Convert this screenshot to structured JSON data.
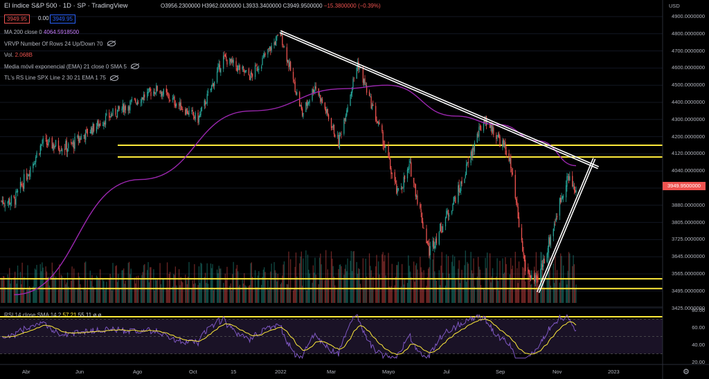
{
  "header": {
    "title": "El índice S&P 500 · 1D · SP · TradingView",
    "ohlc": "O3956.2300000 H3962.0000000 L3933.3400000 C3949.9500000",
    "change": "−15.3800000 (−0.39%)",
    "price_bid": "3949.95",
    "spread": "0.00",
    "price_ask": "3949.95"
  },
  "indicators": [
    {
      "label": "MA 200 close 0",
      "value": "4064.5918500",
      "value_color": "purple",
      "eye": false
    },
    {
      "label": "VRVP Number Of Rows 24 Up/Down 70",
      "value": "",
      "value_color": "white",
      "eye": true
    },
    {
      "label": "Vol.",
      "value": "2.068B",
      "value_color": "red",
      "eye": false
    },
    {
      "label": "Media móvil exponencial (EMA) 21 close 0 SMA 5",
      "value": "",
      "value_color": "white",
      "eye": true
    },
    {
      "label": "TL's RS Line SPX Line 2 30 21 EMA 1 75",
      "value": "",
      "value_color": "white",
      "eye": true
    }
  ],
  "rsi_label": {
    "label": "RSI 14 close SMA 14 2",
    "v1": "57.21",
    "v2": "55.11",
    "v3": "ø ø"
  },
  "currency": "USD",
  "last_price_label": "3949.9500000",
  "price_axis": [
    "4900.0000000",
    "4800.0000000",
    "4700.0000000",
    "4600.0000000",
    "4500.0000000",
    "4400.0000000",
    "4300.0000000",
    "4200.0000000",
    "4120.0000000",
    "4040.0000000",
    "3960.0000000",
    "3880.0000000",
    "3805.0000000",
    "3725.0000000",
    "3645.0000000",
    "3565.0000000",
    "3495.0000000",
    "3425.0000000"
  ],
  "rsi_axis": [
    "80.00",
    "60.00",
    "40.00",
    "20.00"
  ],
  "time_axis": [
    "Abr",
    "Jun",
    "Ago",
    "Oct",
    "15",
    "2022",
    "Mar",
    "Mayo",
    "Jul",
    "Sep",
    "Nov",
    "2023"
  ],
  "colors": {
    "up": "#26a69a",
    "down": "#ef5350",
    "ma200": "#9c27b0",
    "levels": "#ffeb3b",
    "trendlines": "#ffffff",
    "rsi": "#7e57c2",
    "rsi_ma": "#ffeb3b"
  },
  "chart_data": {
    "type": "candlestick",
    "x_range": [
      "2021-03",
      "2022-11"
    ],
    "ylim": [
      3400,
      4950
    ],
    "key_points": [
      {
        "date": "2021-03-15",
        "close": 3900
      },
      {
        "date": "2021-04-15",
        "close": 4170
      },
      {
        "date": "2021-05-15",
        "close": 4150
      },
      {
        "date": "2021-07-01",
        "close": 4330
      },
      {
        "date": "2021-08-20",
        "close": 4480
      },
      {
        "date": "2021-10-04",
        "close": 4300
      },
      {
        "date": "2021-11-01",
        "close": 4660
      },
      {
        "date": "2021-12-01",
        "close": 4550
      },
      {
        "date": "2022-01-03",
        "close": 4800
      },
      {
        "date": "2022-01-27",
        "close": 4330
      },
      {
        "date": "2022-02-10",
        "close": 4500
      },
      {
        "date": "2022-03-08",
        "close": 4170
      },
      {
        "date": "2022-03-29",
        "close": 4630
      },
      {
        "date": "2022-05-12",
        "close": 3930
      },
      {
        "date": "2022-05-26",
        "close": 4060
      },
      {
        "date": "2022-06-16",
        "close": 3670
      },
      {
        "date": "2022-07-20",
        "close": 3960
      },
      {
        "date": "2022-08-16",
        "close": 4305
      },
      {
        "date": "2022-09-12",
        "close": 4110
      },
      {
        "date": "2022-09-30",
        "close": 3590
      },
      {
        "date": "2022-10-13",
        "close": 3520
      },
      {
        "date": "2022-11-15",
        "close": 4010
      },
      {
        "date": "2022-11-25",
        "close": 3949.95
      }
    ],
    "ma200": [
      {
        "date": "2021-03-15",
        "value": 3480
      },
      {
        "date": "2021-08-01",
        "value": 4000
      },
      {
        "date": "2021-12-01",
        "value": 4350
      },
      {
        "date": "2022-03-15",
        "value": 4480
      },
      {
        "date": "2022-05-01",
        "value": 4500
      },
      {
        "date": "2022-07-15",
        "value": 4320
      },
      {
        "date": "2022-09-01",
        "value": 4270
      },
      {
        "date": "2022-10-15",
        "value": 4180
      },
      {
        "date": "2022-11-25",
        "value": 4064.59
      }
    ],
    "horizontal_levels": [
      4160,
      4105,
      3545,
      3505,
      3390
    ],
    "trendlines": [
      {
        "from": {
          "date": "2022-01-03",
          "value": 4818
        },
        "to": {
          "date": "2022-12-20",
          "value": 4060
        }
      },
      {
        "from": {
          "date": "2022-10-13",
          "value": 3491
        },
        "to": {
          "date": "2022-12-14",
          "value": 4100
        }
      }
    ],
    "rsi": {
      "ylim": [
        20,
        80
      ],
      "last": 57.21,
      "ma_last": 55.11
    }
  }
}
